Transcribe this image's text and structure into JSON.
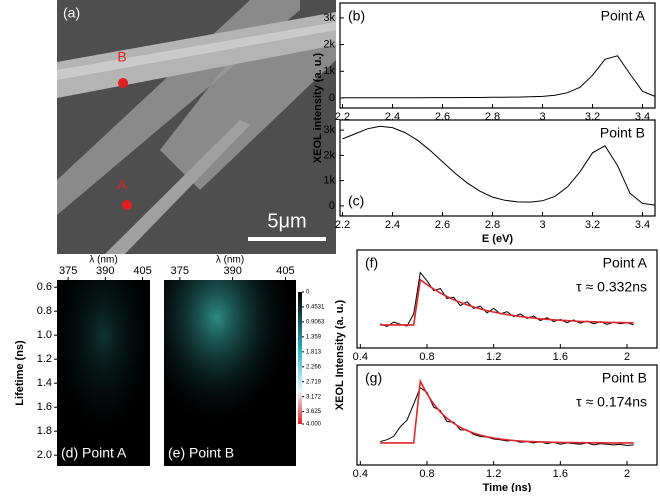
{
  "image": {
    "panel_label": "(a)",
    "markers": [
      "B",
      "A"
    ],
    "scale_bar": "5μm"
  },
  "chart_data": [
    {
      "type": "line",
      "panel_label": "(b)",
      "annotations": [
        "Point A"
      ],
      "ylabel": "XEOL intensity (a. u.)",
      "x": [
        2.2,
        2.25,
        2.3,
        2.35,
        2.4,
        2.45,
        2.5,
        2.55,
        2.6,
        2.65,
        2.7,
        2.75,
        2.8,
        2.85,
        2.9,
        2.95,
        3.0,
        3.05,
        3.1,
        3.15,
        3.2,
        3.25,
        3.3,
        3.35,
        3.4,
        3.45
      ],
      "series": [
        {
          "color": "#000000",
          "values": [
            10,
            10,
            10,
            10,
            10,
            10,
            10,
            15,
            15,
            15,
            20,
            20,
            25,
            30,
            35,
            45,
            60,
            100,
            200,
            400,
            850,
            1450,
            1580,
            900,
            250,
            60
          ]
        }
      ],
      "xlim": [
        2.19,
        3.45
      ],
      "xticks": [
        2.2,
        2.4,
        2.6,
        2.8,
        3.0,
        3.2,
        3.4
      ],
      "ylim": [
        -375,
        3560
      ],
      "yticks": [
        0,
        {
          "value": 1000,
          "label": "1k"
        },
        {
          "value": 2000,
          "label": "2k"
        },
        {
          "value": 3000,
          "label": "3k"
        }
      ]
    },
    {
      "type": "line",
      "panel_label": "(c)",
      "annotations": [
        "Point B"
      ],
      "xlabel": "E (eV)",
      "x": [
        2.2,
        2.25,
        2.3,
        2.35,
        2.4,
        2.45,
        2.5,
        2.55,
        2.6,
        2.65,
        2.7,
        2.75,
        2.8,
        2.85,
        2.9,
        2.95,
        3.0,
        3.05,
        3.1,
        3.15,
        3.2,
        3.25,
        3.3,
        3.35,
        3.4,
        3.45
      ],
      "series": [
        {
          "color": "#000000",
          "values": [
            2650,
            2850,
            3050,
            3150,
            3100,
            2900,
            2600,
            2200,
            1750,
            1300,
            900,
            580,
            350,
            220,
            160,
            150,
            200,
            380,
            750,
            1350,
            2100,
            2380,
            1600,
            500,
            100,
            30
          ]
        }
      ],
      "xlim": [
        2.19,
        3.45
      ],
      "xticks": [
        2.2,
        2.4,
        2.6,
        2.8,
        3.0,
        3.2,
        3.4
      ],
      "ylim": [
        -400,
        3400
      ],
      "yticks": [
        0,
        {
          "value": 1000,
          "label": "1k"
        },
        {
          "value": 2000,
          "label": "2k"
        },
        {
          "value": 3000,
          "label": "3k"
        }
      ]
    },
    {
      "type": "heatmap",
      "panel_label": "(d) Point A",
      "xlabel": "λ (nm)",
      "ylabel": "Lifetime (ns)",
      "xlim": [
        370.5,
        408
      ],
      "xticks": [
        375,
        390,
        405
      ],
      "ylim": [
        0.54,
        2.09
      ],
      "yticks": [
        0.6,
        0.8,
        {
          "value": 1.0,
          "label": "1.0"
        },
        1.2,
        1.4,
        1.6,
        1.8,
        {
          "value": 2.0,
          "label": "2.0"
        }
      ]
    },
    {
      "type": "heatmap",
      "panel_label": "(e) Point B",
      "xlabel": "λ (nm)",
      "xlim": [
        370.5,
        408
      ],
      "xticks": [
        375,
        390,
        405
      ],
      "colorbar": {
        "ylim": [
          0,
          4
        ],
        "yticks": [
          0,
          0.4531,
          0.9063,
          1.359,
          1.813,
          2.266,
          2.719,
          3.172,
          3.625,
          {
            "value": 4,
            "label": "4.000"
          }
        ]
      }
    },
    {
      "type": "line",
      "panel_label": "(f)",
      "annotations": [
        "Point A",
        "τ ≈ 0.332ns"
      ],
      "x": [
        0.52,
        0.56,
        0.6,
        0.64,
        0.68,
        0.72,
        0.76,
        0.8,
        0.84,
        0.88,
        0.92,
        0.96,
        1.0,
        1.04,
        1.08,
        1.12,
        1.16,
        1.2,
        1.24,
        1.28,
        1.32,
        1.36,
        1.4,
        1.44,
        1.48,
        1.52,
        1.56,
        1.6,
        1.64,
        1.68,
        1.72,
        1.76,
        1.8,
        1.84,
        1.88,
        1.92,
        1.96,
        2.0,
        2.04
      ],
      "series": [
        {
          "color": "#000000",
          "values": [
            0.02,
            -0.03,
            0.05,
            0.01,
            -0.02,
            0.2,
            0.95,
            0.8,
            0.62,
            0.66,
            0.48,
            0.5,
            0.35,
            0.42,
            0.3,
            0.34,
            0.22,
            0.3,
            0.2,
            0.24,
            0.15,
            0.2,
            0.12,
            0.16,
            0.08,
            0.13,
            0.06,
            0.1,
            0.04,
            0.09,
            0.03,
            0.07,
            0.02,
            0.06,
            0.01,
            0.05,
            0.02,
            0.04,
            0.0
          ]
        },
        {
          "color": "#e0262b",
          "values": [
            0,
            0,
            0,
            0,
            0,
            0,
            0.82,
            0.73,
            0.649,
            0.578,
            0.514,
            0.458,
            0.408,
            0.364,
            0.325,
            0.29,
            0.26,
            0.233,
            0.209,
            0.187,
            0.168,
            0.151,
            0.137,
            0.123,
            0.111,
            0.101,
            0.092,
            0.084,
            0.077,
            0.07,
            0.064,
            0.059,
            0.055,
            0.051,
            0.047,
            0.044,
            0.042,
            0.039,
            0.037
          ]
        }
      ],
      "xlim": [
        0.38,
        2.18
      ],
      "xticks": [
        0.4,
        0.8,
        1.2,
        1.6,
        2.0
      ],
      "ylim": [
        -0.42,
        1.36
      ]
    },
    {
      "type": "line",
      "panel_label": "(g)",
      "annotations": [
        "Point B",
        "τ ≈ 0.174ns"
      ],
      "xlabel": "Time (ns)",
      "ylabel": "XEOL Intensity (a. u.)",
      "x": [
        0.52,
        0.56,
        0.6,
        0.64,
        0.68,
        0.72,
        0.76,
        0.8,
        0.84,
        0.88,
        0.92,
        0.96,
        1.0,
        1.04,
        1.08,
        1.12,
        1.16,
        1.2,
        1.24,
        1.28,
        1.32,
        1.36,
        1.4,
        1.44,
        1.48,
        1.52,
        1.56,
        1.6,
        1.64,
        1.68,
        1.72,
        1.76,
        1.8,
        1.84,
        1.88,
        1.92,
        1.96,
        2.0,
        2.04
      ],
      "series": [
        {
          "color": "#000000",
          "values": [
            0.02,
            0.05,
            0.1,
            0.25,
            0.35,
            0.6,
            0.85,
            0.78,
            0.55,
            0.5,
            0.33,
            0.32,
            0.2,
            0.2,
            0.13,
            0.1,
            0.09,
            0.06,
            0.05,
            0.03,
            0.04,
            0.01,
            0.02,
            0.0,
            0.02,
            -0.01,
            0.01,
            -0.02,
            0.0,
            -0.01,
            -0.02,
            0.0,
            -0.03,
            -0.01,
            -0.02,
            -0.03,
            -0.02,
            -0.04,
            -0.03
          ]
        },
        {
          "color": "#e0262b",
          "values": [
            0,
            0,
            0,
            0,
            0,
            0,
            0.95,
            0.755,
            0.6,
            0.477,
            0.379,
            0.301,
            0.239,
            0.19,
            0.151,
            0.12,
            0.095,
            0.076,
            0.06,
            0.048,
            0.038,
            0.03,
            0.024,
            0.019,
            0.015,
            0.012,
            0.01,
            0.008,
            0.006,
            0.005,
            0.004,
            0.003,
            0.002,
            0.002,
            0.001,
            0.001,
            0.001,
            0.001,
            0.0
          ]
        }
      ],
      "xlim": [
        0.38,
        2.18
      ],
      "xticks": [
        0.4,
        0.8,
        1.2,
        1.6,
        2.0
      ],
      "ylim": [
        -0.34,
        1.2
      ]
    }
  ]
}
